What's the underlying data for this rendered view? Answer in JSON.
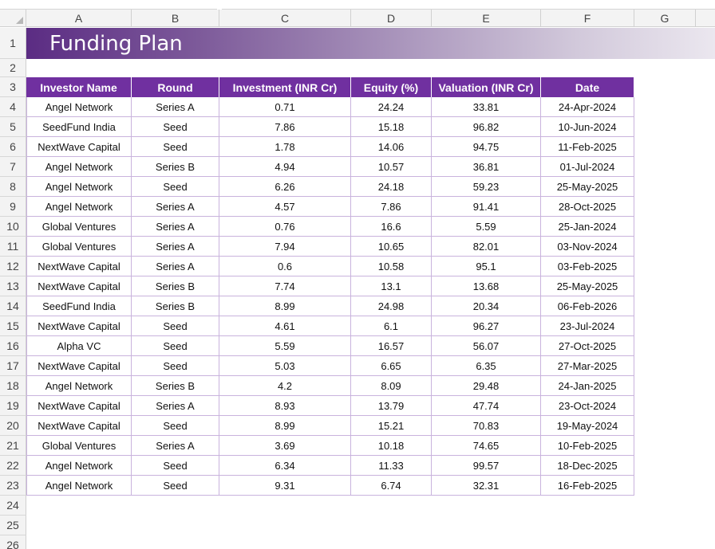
{
  "columns": [
    "A",
    "B",
    "C",
    "D",
    "E",
    "F",
    "G"
  ],
  "rows": [
    "1",
    "2",
    "3",
    "4",
    "5",
    "6",
    "7",
    "8",
    "9",
    "10",
    "11",
    "12",
    "13",
    "14",
    "15",
    "16",
    "17",
    "18",
    "19",
    "20",
    "21",
    "22",
    "23",
    "24",
    "25",
    "26"
  ],
  "title": "Funding Plan",
  "table": {
    "headers": [
      "Investor Name",
      "Round",
      "Investment (INR Cr)",
      "Equity (%)",
      "Valuation (INR Cr)",
      "Date"
    ],
    "rows": [
      [
        "Angel Network",
        "Series A",
        "0.71",
        "24.24",
        "33.81",
        "24-Apr-2024"
      ],
      [
        "SeedFund India",
        "Seed",
        "7.86",
        "15.18",
        "96.82",
        "10-Jun-2024"
      ],
      [
        "NextWave Capital",
        "Seed",
        "1.78",
        "14.06",
        "94.75",
        "11-Feb-2025"
      ],
      [
        "Angel Network",
        "Series B",
        "4.94",
        "10.57",
        "36.81",
        "01-Jul-2024"
      ],
      [
        "Angel Network",
        "Seed",
        "6.26",
        "24.18",
        "59.23",
        "25-May-2025"
      ],
      [
        "Angel Network",
        "Series A",
        "4.57",
        "7.86",
        "91.41",
        "28-Oct-2025"
      ],
      [
        "Global Ventures",
        "Series A",
        "0.76",
        "16.6",
        "5.59",
        "25-Jan-2024"
      ],
      [
        "Global Ventures",
        "Series A",
        "7.94",
        "10.65",
        "82.01",
        "03-Nov-2024"
      ],
      [
        "NextWave Capital",
        "Series A",
        "0.6",
        "10.58",
        "95.1",
        "03-Feb-2025"
      ],
      [
        "NextWave Capital",
        "Series B",
        "7.74",
        "13.1",
        "13.68",
        "25-May-2025"
      ],
      [
        "SeedFund India",
        "Series B",
        "8.99",
        "24.98",
        "20.34",
        "06-Feb-2026"
      ],
      [
        "NextWave Capital",
        "Seed",
        "4.61",
        "6.1",
        "96.27",
        "23-Jul-2024"
      ],
      [
        "Alpha VC",
        "Seed",
        "5.59",
        "16.57",
        "56.07",
        "27-Oct-2025"
      ],
      [
        "NextWave Capital",
        "Seed",
        "5.03",
        "6.65",
        "6.35",
        "27-Mar-2025"
      ],
      [
        "Angel Network",
        "Series B",
        "4.2",
        "8.09",
        "29.48",
        "24-Jan-2025"
      ],
      [
        "NextWave Capital",
        "Series A",
        "8.93",
        "13.79",
        "47.74",
        "23-Oct-2024"
      ],
      [
        "NextWave Capital",
        "Seed",
        "8.99",
        "15.21",
        "70.83",
        "19-May-2024"
      ],
      [
        "Global Ventures",
        "Series A",
        "3.69",
        "10.18",
        "74.65",
        "10-Feb-2025"
      ],
      [
        "Angel Network",
        "Seed",
        "6.34",
        "11.33",
        "99.57",
        "18-Dec-2025"
      ],
      [
        "Angel Network",
        "Seed",
        "9.31",
        "6.74",
        "32.31",
        "16-Feb-2025"
      ]
    ]
  },
  "colors": {
    "header_fill": "#7030a0",
    "title_gradient_start": "#5b2c83",
    "title_gradient_end": "#ebe7ef",
    "cell_border": "#c9b3dd"
  }
}
